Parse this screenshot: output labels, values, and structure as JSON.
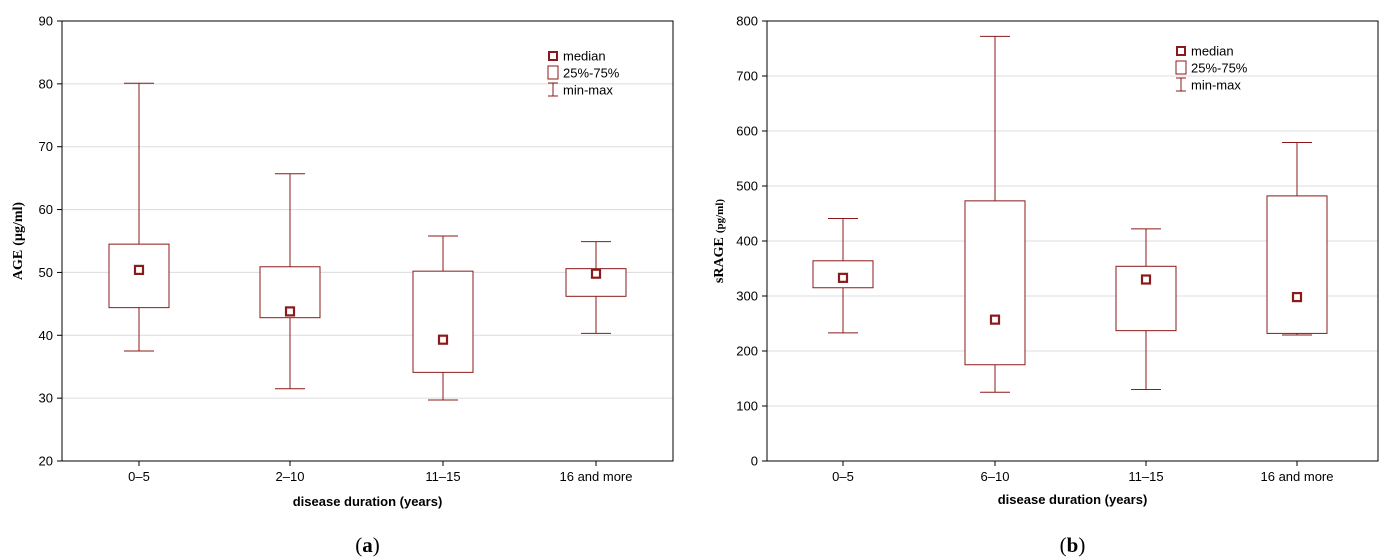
{
  "chart_data": [
    {
      "type": "boxplot",
      "panel_label": "a",
      "xlabel": "disease duration (years)",
      "ylabel": "AGE",
      "ylabel_unit": "(µg/ml)",
      "ylim": [
        20,
        90
      ],
      "yticks": [
        20,
        30,
        40,
        50,
        60,
        70,
        80,
        90
      ],
      "grid": true,
      "legend_position": "top-right",
      "legend": [
        "median",
        "25%-75%",
        "min-max"
      ],
      "categories": [
        "0–5",
        "2–10",
        "11–15",
        "16 and more"
      ],
      "min": [
        37.5,
        31.5,
        29.7,
        40.3
      ],
      "q1": [
        44.4,
        42.8,
        34.1,
        46.2
      ],
      "median": [
        50.4,
        43.8,
        39.3,
        49.8
      ],
      "q3": [
        54.5,
        50.9,
        50.2,
        50.6
      ],
      "max": [
        80.1,
        65.7,
        55.8,
        54.9
      ]
    },
    {
      "type": "boxplot",
      "panel_label": "b",
      "xlabel": "disease duration (years)",
      "ylabel": "sRAGE",
      "ylabel_unit": "(pg/ml)",
      "ylim": [
        0,
        800
      ],
      "yticks": [
        0,
        100,
        200,
        300,
        400,
        500,
        600,
        700,
        800
      ],
      "grid": true,
      "legend_position": "top-right",
      "legend": [
        "median",
        "25%-75%",
        "min-max"
      ],
      "categories": [
        "0–5",
        "6–10",
        "11–15",
        "16 and more"
      ],
      "min": [
        233,
        125,
        130,
        229
      ],
      "q1": [
        315,
        175,
        237,
        232
      ],
      "median": [
        333,
        257,
        330,
        298
      ],
      "q3": [
        364,
        473,
        354,
        482
      ],
      "max": [
        441,
        772,
        422,
        579
      ]
    }
  ],
  "colors": {
    "box": "#8b1a1a",
    "grid": "#dcdcdc",
    "axis": "#000000"
  }
}
